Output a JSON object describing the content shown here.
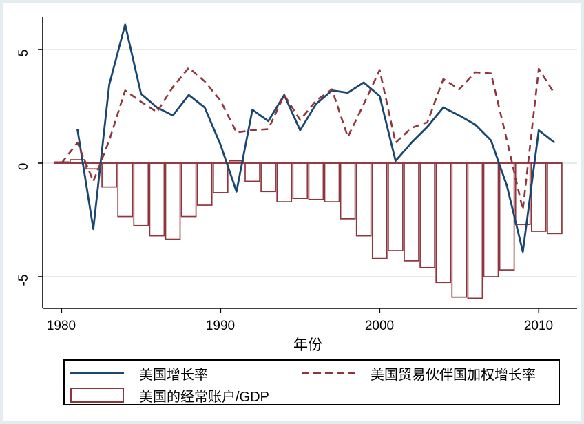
{
  "axes": {
    "x": {
      "title": "年份",
      "tick_labels": [
        "1980",
        "1990",
        "2000",
        "2010"
      ],
      "tick_values": [
        1980,
        1990,
        2000,
        2010
      ]
    },
    "y": {
      "tick_labels": [
        "5",
        "0",
        "-5"
      ],
      "tick_values": [
        5,
        0,
        -5
      ]
    }
  },
  "legend": {
    "entries": [
      {
        "label": "美国增长率",
        "swatch": "solid-line"
      },
      {
        "label": "美国贸易伙伴国加权增长率",
        "swatch": "dashed-line"
      },
      {
        "label": "美国的经常账户/GDP",
        "swatch": "outlined-bar"
      }
    ]
  },
  "colors": {
    "navy": "#1a476f",
    "maroon": "#90353b",
    "grid": "#e2ecef",
    "axis": "#000000",
    "plot_background": "#ffffff",
    "frame": "#e4ecf0",
    "bar_fill": "#ffffff"
  },
  "chart_data": {
    "type": "combo",
    "xlabel": "年份",
    "ylabel": "",
    "xlim": [
      1979,
      2012.2
    ],
    "ylim": [
      -6.4,
      6.45
    ],
    "xticks": [
      1980,
      1990,
      2000,
      2010
    ],
    "yticks": [
      5,
      0,
      -5
    ],
    "grid": "horizontal",
    "legend_position": "bottom",
    "x": [
      1980,
      1981,
      1982,
      1983,
      1984,
      1985,
      1986,
      1987,
      1988,
      1989,
      1990,
      1991,
      1992,
      1993,
      1994,
      1995,
      1996,
      1997,
      1998,
      1999,
      2000,
      2001,
      2002,
      2003,
      2004,
      2005,
      2006,
      2007,
      2008,
      2009,
      2010,
      2011
    ],
    "series": [
      {
        "name": "美国增长率",
        "type": "line",
        "style": "solid",
        "color": "#1a476f",
        "values": [
          null,
          1.5,
          -2.9,
          3.45,
          6.1,
          3.05,
          2.45,
          2.1,
          3.0,
          2.45,
          0.8,
          -1.25,
          2.35,
          1.85,
          3.0,
          1.45,
          2.6,
          3.2,
          3.1,
          3.55,
          2.95,
          0.1,
          0.9,
          1.6,
          2.45,
          2.1,
          1.7,
          1.0,
          -1.0,
          -3.9,
          1.45,
          0.9
        ]
      },
      {
        "name": "美国贸易伙伴国加权增长率",
        "type": "line",
        "style": "dashed",
        "color": "#90353b",
        "values": [
          0,
          0.9,
          -0.8,
          1.0,
          3.2,
          2.7,
          2.25,
          3.35,
          4.2,
          3.6,
          2.75,
          1.35,
          1.45,
          1.5,
          3.0,
          1.9,
          2.75,
          3.25,
          1.15,
          2.6,
          4.1,
          0.9,
          1.55,
          1.8,
          3.7,
          3.25,
          4.0,
          3.95,
          1.0,
          -2.05,
          4.15,
          3.05
        ]
      },
      {
        "name": "美国的经常账户/GDP",
        "type": "bar",
        "color": "#90353b",
        "fill": "#ffffff",
        "values": [
          0.05,
          0.15,
          -0.25,
          -1.05,
          -2.35,
          -2.75,
          -3.2,
          -3.35,
          -2.35,
          -1.85,
          -1.3,
          0.1,
          -0.8,
          -1.25,
          -1.7,
          -1.55,
          -1.6,
          -1.7,
          -2.45,
          -3.2,
          -4.2,
          -3.85,
          -4.3,
          -4.6,
          -5.25,
          -5.9,
          -5.95,
          -5.0,
          -4.7,
          -2.7,
          -3.0,
          -3.1
        ]
      }
    ]
  }
}
